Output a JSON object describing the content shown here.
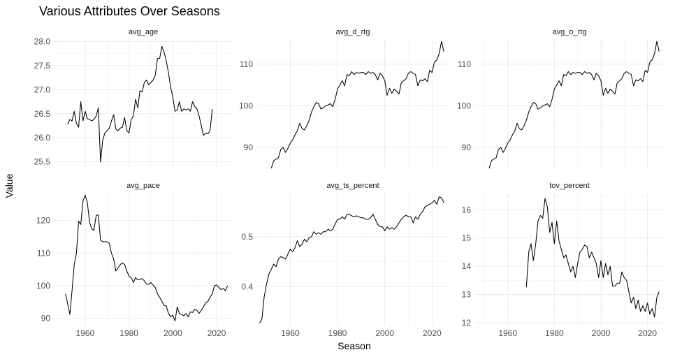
{
  "chart_data": {
    "type": "line",
    "title": "Various Attributes Over Seasons",
    "xlabel": "Season",
    "ylabel": "Value",
    "grid": true,
    "xticks": [
      1960,
      1980,
      2000,
      2020
    ],
    "panels": [
      {
        "name": "avg_age",
        "yticks": [
          25.5,
          26.0,
          26.5,
          27.0,
          27.5,
          28.0
        ],
        "ytick_labels": [
          "25.5",
          "26.0",
          "26.5",
          "27.0",
          "27.5",
          "28.0"
        ],
        "ylim": [
          25.35,
          28.05
        ],
        "xlim": [
          1946,
          2027
        ],
        "x": [
          1952,
          1953,
          1954,
          1955,
          1956,
          1957,
          1958,
          1959,
          1960,
          1961,
          1962,
          1963,
          1964,
          1965,
          1966,
          1967,
          1968,
          1969,
          1970,
          1971,
          1972,
          1973,
          1974,
          1975,
          1976,
          1977,
          1978,
          1979,
          1980,
          1981,
          1982,
          1983,
          1984,
          1985,
          1986,
          1987,
          1988,
          1989,
          1990,
          1991,
          1992,
          1993,
          1994,
          1995,
          1996,
          1997,
          1998,
          1999,
          2000,
          2001,
          2002,
          2003,
          2004,
          2005,
          2006,
          2007,
          2008,
          2009,
          2010,
          2011,
          2012,
          2013,
          2014,
          2015,
          2016,
          2017,
          2018,
          2019,
          2020,
          2021,
          2022,
          2023,
          2024,
          2025
        ],
        "values": [
          26.28,
          26.38,
          26.35,
          26.55,
          26.3,
          26.22,
          26.75,
          26.35,
          26.55,
          26.4,
          26.38,
          26.35,
          26.38,
          26.45,
          26.62,
          25.5,
          25.95,
          26.1,
          26.15,
          26.2,
          26.35,
          26.48,
          26.18,
          26.15,
          26.2,
          26.22,
          26.42,
          26.15,
          26.1,
          26.38,
          26.45,
          26.8,
          26.62,
          26.98,
          26.95,
          27.15,
          27.2,
          27.1,
          27.15,
          27.2,
          27.3,
          27.65,
          27.65,
          27.9,
          27.78,
          27.6,
          27.35,
          27.05,
          26.85,
          26.55,
          26.58,
          26.75,
          26.55,
          26.6,
          26.58,
          26.6,
          26.55,
          26.75,
          26.65,
          26.6,
          26.45,
          26.25,
          26.05,
          26.1,
          26.08,
          26.15,
          26.6,
          null,
          null,
          null,
          null,
          null,
          null,
          null
        ]
      },
      {
        "name": "avg_d_rtg",
        "yticks": [
          90,
          100,
          110
        ],
        "ytick_labels": [
          "90",
          "100",
          "110"
        ],
        "ylim": [
          84.8,
          116
        ],
        "xlim": [
          1946,
          2027
        ],
        "x": [
          1952,
          1953,
          1954,
          1955,
          1956,
          1957,
          1958,
          1959,
          1960,
          1961,
          1962,
          1963,
          1964,
          1965,
          1966,
          1967,
          1968,
          1969,
          1970,
          1971,
          1972,
          1973,
          1974,
          1975,
          1976,
          1977,
          1978,
          1979,
          1980,
          1981,
          1982,
          1983,
          1984,
          1985,
          1986,
          1987,
          1988,
          1989,
          1990,
          1991,
          1992,
          1993,
          1994,
          1995,
          1996,
          1997,
          1998,
          1999,
          2000,
          2001,
          2002,
          2003,
          2004,
          2005,
          2006,
          2007,
          2008,
          2009,
          2010,
          2011,
          2012,
          2013,
          2014,
          2015,
          2016,
          2017,
          2018,
          2019,
          2020,
          2021,
          2022,
          2023,
          2024,
          2025
        ],
        "values": [
          85,
          86.8,
          87.2,
          87.5,
          89.5,
          90,
          88.8,
          89.8,
          91,
          91.8,
          93,
          94,
          95.8,
          94.5,
          94.2,
          95.2,
          96.5,
          98.5,
          99.8,
          100.8,
          100.5,
          99.2,
          99.5,
          100,
          100.2,
          100.5,
          99.8,
          101.5,
          104,
          105,
          106,
          104.8,
          107.5,
          107.2,
          108.2,
          107.5,
          108,
          107.8,
          108,
          108,
          107.5,
          108.2,
          107.8,
          108,
          107.5,
          106.2,
          107.8,
          107.2,
          106,
          102.5,
          104.2,
          103,
          104,
          103.5,
          102.8,
          105.5,
          106,
          106.5,
          107.8,
          108.2,
          107.8,
          107.5,
          104.8,
          106.2,
          106,
          106.5,
          105.8,
          108.5,
          108,
          110.5,
          111,
          112.5,
          115.5,
          113
        ]
      },
      {
        "name": "avg_o_rtg",
        "yticks": [
          90,
          100,
          110
        ],
        "ytick_labels": [
          "90",
          "100",
          "110"
        ],
        "ylim": [
          84.8,
          116
        ],
        "xlim": [
          1946,
          2027
        ],
        "x": [
          1952,
          1953,
          1954,
          1955,
          1956,
          1957,
          1958,
          1959,
          1960,
          1961,
          1962,
          1963,
          1964,
          1965,
          1966,
          1967,
          1968,
          1969,
          1970,
          1971,
          1972,
          1973,
          1974,
          1975,
          1976,
          1977,
          1978,
          1979,
          1980,
          1981,
          1982,
          1983,
          1984,
          1985,
          1986,
          1987,
          1988,
          1989,
          1990,
          1991,
          1992,
          1993,
          1994,
          1995,
          1996,
          1997,
          1998,
          1999,
          2000,
          2001,
          2002,
          2003,
          2004,
          2005,
          2006,
          2007,
          2008,
          2009,
          2010,
          2011,
          2012,
          2013,
          2014,
          2015,
          2016,
          2017,
          2018,
          2019,
          2020,
          2021,
          2022,
          2023,
          2024,
          2025
        ],
        "values": [
          85,
          86.8,
          87.2,
          87.5,
          89.5,
          90,
          88.8,
          89.8,
          91,
          91.8,
          93,
          94,
          95.8,
          94.5,
          94.2,
          95.2,
          96.5,
          98.5,
          99.8,
          100.8,
          100.5,
          99.2,
          99.5,
          100,
          100.2,
          100.5,
          99.8,
          101.5,
          104,
          105,
          106,
          104.8,
          107.5,
          107.2,
          108.2,
          107.5,
          108,
          107.8,
          108,
          108,
          107.5,
          108.2,
          107.8,
          108,
          107.5,
          106.2,
          107.8,
          107.2,
          106,
          102.5,
          104.2,
          103,
          104,
          103.5,
          102.8,
          105.5,
          106,
          106.5,
          107.8,
          108.2,
          107.8,
          107.5,
          104.8,
          106.2,
          106,
          106.5,
          105.8,
          108.5,
          108,
          110.5,
          111,
          112.5,
          115.5,
          113
        ]
      },
      {
        "name": "avg_pace",
        "yticks": [
          90,
          100,
          110,
          120
        ],
        "ytick_labels": [
          "90",
          "100",
          "110",
          "120"
        ],
        "ylim": [
          87.8,
          128.5
        ],
        "xlim": [
          1946,
          2027
        ],
        "x": [
          1951,
          1952,
          1953,
          1954,
          1955,
          1956,
          1957,
          1958,
          1959,
          1960,
          1961,
          1962,
          1963,
          1964,
          1965,
          1966,
          1967,
          1968,
          1969,
          1970,
          1971,
          1972,
          1973,
          1974,
          1975,
          1976,
          1977,
          1978,
          1979,
          1980,
          1981,
          1982,
          1983,
          1984,
          1985,
          1986,
          1987,
          1988,
          1989,
          1990,
          1991,
          1992,
          1993,
          1994,
          1995,
          1996,
          1997,
          1998,
          1999,
          2000,
          2001,
          2002,
          2003,
          2004,
          2005,
          2006,
          2007,
          2008,
          2009,
          2010,
          2011,
          2012,
          2013,
          2014,
          2015,
          2016,
          2017,
          2018,
          2019,
          2020,
          2021,
          2022,
          2023,
          2024,
          2025
        ],
        "values": [
          97.5,
          94.5,
          91.2,
          98.5,
          106.5,
          110,
          119.8,
          118.8,
          126,
          127.8,
          125.5,
          119.5,
          117.5,
          117,
          121.5,
          121.8,
          114,
          113.5,
          113.5,
          113.5,
          113,
          110,
          108.2,
          104.5,
          105.5,
          106.5,
          107,
          106.5,
          104.5,
          103,
          102.5,
          101,
          102.5,
          101.8,
          102,
          102.2,
          101.5,
          100.5,
          100.5,
          101,
          100.2,
          99.5,
          97.5,
          96.5,
          95.2,
          94,
          93.8,
          91.5,
          90.5,
          91,
          89.2,
          93.5,
          91.5,
          91.2,
          90.8,
          91.5,
          90.5,
          92,
          91.8,
          92.8,
          92.5,
          91.5,
          92.5,
          93.5,
          94.8,
          95.2,
          96.5,
          97.5,
          100,
          100.2,
          99.5,
          98.8,
          99.2,
          98.5,
          100
        ]
      },
      {
        "name": "avg_ts_percent",
        "yticks": [
          0.4,
          0.5
        ],
        "ytick_labels": [
          "0.4",
          "0.5"
        ],
        "ylim": [
          0.322,
          0.588
        ],
        "xlim": [
          1946,
          2027
        ],
        "x": [
          1947,
          1948,
          1949,
          1950,
          1951,
          1952,
          1953,
          1954,
          1955,
          1956,
          1957,
          1958,
          1959,
          1960,
          1961,
          1962,
          1963,
          1964,
          1965,
          1966,
          1967,
          1968,
          1969,
          1970,
          1971,
          1972,
          1973,
          1974,
          1975,
          1976,
          1977,
          1978,
          1979,
          1980,
          1981,
          1982,
          1983,
          1984,
          1985,
          1986,
          1987,
          1988,
          1989,
          1990,
          1991,
          1992,
          1993,
          1994,
          1995,
          1996,
          1997,
          1998,
          1999,
          2000,
          2001,
          2002,
          2003,
          2004,
          2005,
          2006,
          2007,
          2008,
          2009,
          2010,
          2011,
          2012,
          2013,
          2014,
          2015,
          2016,
          2017,
          2018,
          2019,
          2020,
          2021,
          2022,
          2023,
          2024,
          2025
        ],
        "values": [
          0.327,
          0.335,
          0.38,
          0.405,
          0.425,
          0.435,
          0.445,
          0.44,
          0.455,
          0.46,
          0.458,
          0.455,
          0.465,
          0.475,
          0.47,
          0.478,
          0.492,
          0.48,
          0.485,
          0.495,
          0.49,
          0.498,
          0.5,
          0.51,
          0.505,
          0.508,
          0.505,
          0.51,
          0.51,
          0.515,
          0.512,
          0.515,
          0.525,
          0.535,
          0.535,
          0.54,
          0.535,
          0.545,
          0.545,
          0.542,
          0.54,
          0.542,
          0.54,
          0.538,
          0.538,
          0.535,
          0.535,
          0.538,
          0.545,
          0.535,
          0.525,
          0.52,
          0.52,
          0.512,
          0.52,
          0.515,
          0.518,
          0.515,
          0.52,
          0.528,
          0.535,
          0.54,
          0.543,
          0.54,
          0.54,
          0.528,
          0.54,
          0.535,
          0.545,
          0.55,
          0.56,
          0.563,
          0.565,
          0.568,
          0.573,
          0.565,
          0.58,
          0.578,
          0.568
        ]
      },
      {
        "name": "tov_percent",
        "yticks": [
          12,
          13,
          14,
          15,
          16
        ],
        "ytick_labels": [
          "12",
          "13",
          "14",
          "15",
          "16"
        ],
        "ylim": [
          11.9,
          16.6
        ],
        "xlim": [
          1946,
          2027
        ],
        "x": [
          1968,
          1969,
          1970,
          1971,
          1972,
          1973,
          1974,
          1975,
          1976,
          1977,
          1978,
          1979,
          1980,
          1981,
          1982,
          1983,
          1984,
          1985,
          1986,
          1987,
          1988,
          1989,
          1990,
          1991,
          1992,
          1993,
          1994,
          1995,
          1996,
          1997,
          1998,
          1999,
          2000,
          2001,
          2002,
          2003,
          2004,
          2005,
          2006,
          2007,
          2008,
          2009,
          2010,
          2011,
          2012,
          2013,
          2014,
          2015,
          2016,
          2017,
          2018,
          2019,
          2020,
          2021,
          2022,
          2023,
          2024,
          2025
        ],
        "values": [
          13.25,
          14.5,
          14.8,
          14.2,
          14.8,
          15.6,
          15.8,
          15.7,
          16.4,
          16.1,
          15.2,
          15.55,
          14.8,
          15.6,
          14.9,
          14.6,
          14.3,
          14.4,
          14.1,
          13.8,
          14.0,
          13.6,
          14.1,
          14.5,
          14.6,
          14.75,
          14.7,
          14.3,
          14.5,
          14.3,
          14.1,
          13.6,
          14.2,
          13.6,
          14.1,
          13.7,
          14.0,
          13.3,
          13.3,
          13.4,
          13.4,
          13.8,
          13.6,
          13.5,
          13.1,
          12.7,
          12.9,
          12.5,
          12.8,
          12.4,
          12.6,
          12.4,
          12.7,
          12.3,
          12.5,
          12.2,
          12.9,
          13.1
        ]
      }
    ]
  }
}
